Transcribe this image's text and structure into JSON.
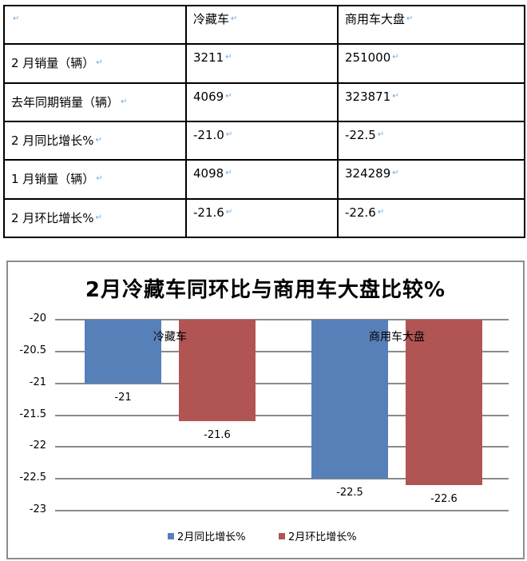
{
  "table": {
    "header": [
      "",
      "冷藏车",
      "商用车大盘"
    ],
    "rows": [
      {
        "label": "2 月销量（辆）",
        "values": [
          "3211",
          "251000"
        ]
      },
      {
        "label": "去年同期销量（辆）",
        "values": [
          "4069",
          "323871"
        ]
      },
      {
        "label": "2 月同比增长%",
        "values": [
          "-21.0",
          "-22.5"
        ]
      },
      {
        "label": "1 月销量（辆）",
        "values": [
          "4098",
          "324289"
        ]
      },
      {
        "label": "2 月环比增长%",
        "values": [
          "-21.6",
          "-22.6"
        ]
      }
    ],
    "return_mark": "↵"
  },
  "chart": {
    "title": "2月冷藏车同环比与商用车大盘比较%"
  },
  "chart_data": {
    "type": "bar",
    "title": "2月冷藏车同环比与商用车大盘比较%",
    "categories": [
      "冷藏车",
      "商用车大盘"
    ],
    "series": [
      {
        "name": "2月同比增长%",
        "values": [
          -21,
          -22.5
        ],
        "color": "#5880b8"
      },
      {
        "name": "2月环比增长%",
        "values": [
          -21.6,
          -22.6
        ],
        "color": "#b05553"
      }
    ],
    "data_labels": [
      [
        "-21",
        "-22.5"
      ],
      [
        "-21.6",
        "-22.6"
      ]
    ],
    "xlabel": "",
    "ylabel": "",
    "yticks": [
      "-20",
      "-20.5",
      "-21",
      "-21.5",
      "-22",
      "-22.5",
      "-23"
    ],
    "ylim": [
      -23,
      -20
    ],
    "y_reversed_baseline": -20,
    "grid": true,
    "legend_position": "bottom"
  }
}
